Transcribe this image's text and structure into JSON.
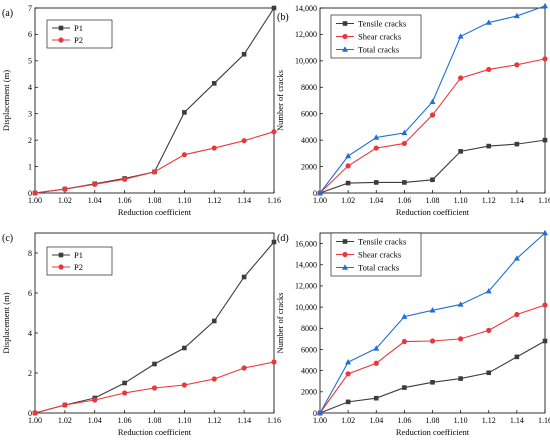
{
  "chart_data": [
    {
      "type": "line",
      "panel_label": "(a)",
      "xlabel": "Reduction coefficient",
      "ylabel": "Displacement  (m)",
      "x": [
        1.0,
        1.02,
        1.04,
        1.06,
        1.08,
        1.1,
        1.12,
        1.14,
        1.16
      ],
      "x_ticks": [
        "1.00",
        "1.02",
        "1.04",
        "1.06",
        "1.08",
        "1.10",
        "1.12",
        "1.14",
        "1.16"
      ],
      "xlim": [
        1.0,
        1.16
      ],
      "ylim": [
        0,
        7
      ],
      "y_ticks": [
        "0",
        "1",
        "2",
        "3",
        "4",
        "5",
        "6",
        "7"
      ],
      "y_tick_values": [
        0,
        1,
        2,
        3,
        4,
        5,
        6,
        7
      ],
      "legend_position": "top-left",
      "series": [
        {
          "name": "P1",
          "color": "#3c3c3c",
          "marker": "square",
          "values": [
            0,
            0.15,
            0.35,
            0.55,
            0.8,
            3.05,
            4.15,
            5.25,
            7.0
          ]
        },
        {
          "name": "P2",
          "color": "#e8383d",
          "marker": "circle",
          "values": [
            0,
            0.15,
            0.33,
            0.52,
            0.8,
            1.45,
            1.7,
            1.98,
            2.32
          ]
        }
      ]
    },
    {
      "type": "line",
      "panel_label": "(b)",
      "xlabel": "Reduction coefficient",
      "ylabel": "Number of cracks",
      "x": [
        1.0,
        1.02,
        1.04,
        1.06,
        1.08,
        1.1,
        1.12,
        1.14,
        1.16
      ],
      "x_ticks": [
        "1.00",
        "1.02",
        "1.04",
        "1.06",
        "1.08",
        "1.10",
        "1.12",
        "1.14",
        "1.16"
      ],
      "xlim": [
        1.0,
        1.16
      ],
      "ylim": [
        0,
        14000
      ],
      "y_ticks": [
        "0",
        "2000",
        "4000",
        "6000",
        "8000",
        "10,000",
        "12,000",
        "14,000"
      ],
      "y_tick_values": [
        0,
        2000,
        4000,
        6000,
        8000,
        10000,
        12000,
        14000
      ],
      "legend_position": "top-left",
      "series": [
        {
          "name": "Tensile cracks",
          "color": "#3c3c3c",
          "marker": "square",
          "values": [
            0,
            750,
            800,
            800,
            1000,
            3150,
            3550,
            3700,
            4000
          ]
        },
        {
          "name": "Shear cracks",
          "color": "#e8383d",
          "marker": "circle",
          "values": [
            0,
            2050,
            3400,
            3750,
            5900,
            8700,
            9350,
            9700,
            10150
          ]
        },
        {
          "name": "Total cracks",
          "color": "#1f6fd6",
          "marker": "triangle",
          "values": [
            0,
            2800,
            4200,
            4550,
            6900,
            11850,
            12900,
            13400,
            14150
          ]
        }
      ]
    },
    {
      "type": "line",
      "panel_label": "(c)",
      "xlabel": "Reduction coefficient",
      "ylabel": "Displacement  (m)",
      "x": [
        1.0,
        1.02,
        1.04,
        1.06,
        1.08,
        1.1,
        1.12,
        1.14,
        1.16
      ],
      "x_ticks": [
        "1.00",
        "1.02",
        "1.04",
        "1.06",
        "1.08",
        "1.10",
        "1.12",
        "1.14",
        "1.16"
      ],
      "xlim": [
        1.0,
        1.16
      ],
      "ylim": [
        0,
        9
      ],
      "y_ticks": [
        "0",
        "2",
        "4",
        "6",
        "8"
      ],
      "y_tick_values": [
        0,
        2,
        4,
        6,
        8
      ],
      "legend_position": "top-left",
      "series": [
        {
          "name": "P1",
          "color": "#3c3c3c",
          "marker": "square",
          "values": [
            0,
            0.4,
            0.75,
            1.5,
            2.45,
            3.25,
            4.6,
            6.8,
            8.55
          ]
        },
        {
          "name": "P2",
          "color": "#e8383d",
          "marker": "circle",
          "values": [
            0,
            0.4,
            0.65,
            1.0,
            1.25,
            1.4,
            1.7,
            2.25,
            2.55
          ]
        }
      ]
    },
    {
      "type": "line",
      "panel_label": "(d)",
      "xlabel": "Reduction coefficient",
      "ylabel": "Number of cracks",
      "x": [
        1.0,
        1.02,
        1.04,
        1.06,
        1.08,
        1.1,
        1.12,
        1.14,
        1.16
      ],
      "x_ticks": [
        "1.00",
        "1.02",
        "1.04",
        "1.06",
        "1.08",
        "1.10",
        "1.12",
        "1.14",
        "1.16"
      ],
      "xlim": [
        1.0,
        1.16
      ],
      "ylim": [
        0,
        17000
      ],
      "y_ticks": [
        "0",
        "2000",
        "4000",
        "6000",
        "8000",
        "10,000",
        "12,000",
        "14,000",
        "16,000"
      ],
      "y_tick_values": [
        0,
        2000,
        4000,
        6000,
        8000,
        10000,
        12000,
        14000,
        16000
      ],
      "legend_position": "top-left",
      "series": [
        {
          "name": "Tensile cracks",
          "color": "#3c3c3c",
          "marker": "square",
          "values": [
            0,
            1050,
            1400,
            2400,
            2900,
            3250,
            3800,
            5300,
            6800
          ]
        },
        {
          "name": "Shear cracks",
          "color": "#e8383d",
          "marker": "circle",
          "values": [
            0,
            3700,
            4700,
            6750,
            6800,
            7000,
            7800,
            9300,
            10200
          ]
        },
        {
          "name": "Total cracks",
          "color": "#1f6fd6",
          "marker": "triangle",
          "values": [
            0,
            4800,
            6100,
            9100,
            9700,
            10250,
            11500,
            14600,
            17000
          ]
        }
      ]
    }
  ]
}
